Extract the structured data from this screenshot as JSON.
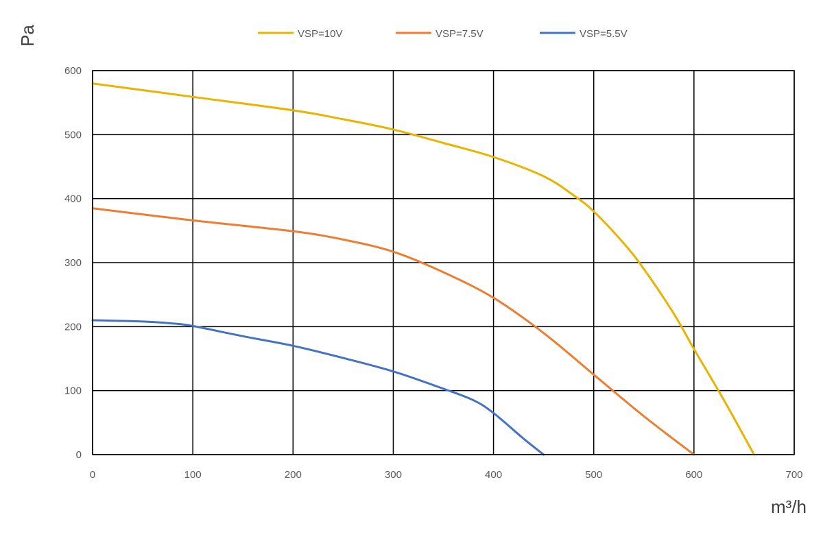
{
  "chart_data": {
    "type": "line",
    "title": "",
    "xlabel": "m³/h",
    "ylabel": "Pa",
    "xlim": [
      0,
      700
    ],
    "ylim": [
      0,
      600
    ],
    "xticks": [
      0,
      100,
      200,
      300,
      400,
      500,
      600,
      700
    ],
    "yticks": [
      0,
      100,
      200,
      300,
      400,
      500,
      600
    ],
    "grid": true,
    "legend": "top-center",
    "series": [
      {
        "name": "VSP=10V",
        "color": "#E8B400",
        "x": [
          0,
          100,
          200,
          250,
          300,
          350,
          400,
          450,
          480,
          500,
          530,
          550,
          580,
          600,
          630,
          660
        ],
        "y": [
          580,
          559,
          538,
          524,
          508,
          487,
          465,
          435,
          405,
          380,
          330,
          290,
          220,
          165,
          85,
          0
        ]
      },
      {
        "name": "VSP=7.5V",
        "color": "#ED7D31",
        "x": [
          0,
          100,
          200,
          250,
          300,
          350,
          400,
          450,
          500,
          550,
          600
        ],
        "y": [
          385,
          366,
          349,
          336,
          317,
          285,
          245,
          190,
          125,
          60,
          0
        ]
      },
      {
        "name": "VSP=5.5V",
        "color": "#4472C4",
        "x": [
          0,
          50,
          80,
          100,
          150,
          200,
          250,
          300,
          350,
          380,
          400,
          430,
          450
        ],
        "y": [
          210,
          208,
          205,
          201,
          185,
          170,
          151,
          130,
          103,
          85,
          65,
          25,
          0
        ]
      }
    ]
  }
}
